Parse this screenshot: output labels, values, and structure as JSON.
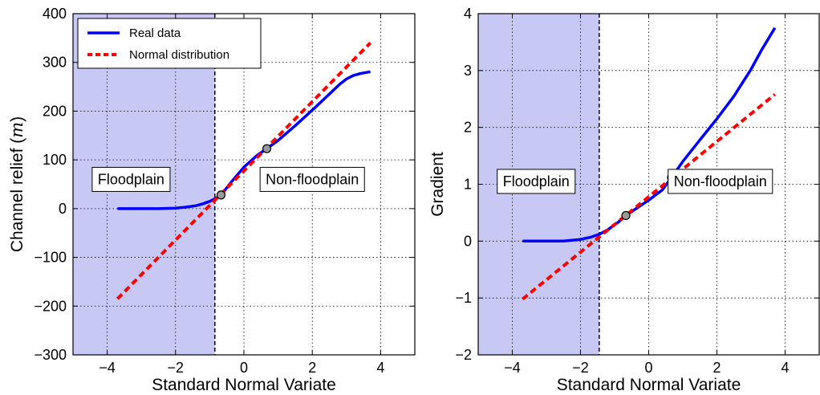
{
  "chart_data": [
    {
      "type": "line",
      "xlabel": "Standard Normal Variate",
      "ylabel": "Channel relief ",
      "ylabel_unit": "m",
      "xlim": [
        -5,
        5
      ],
      "ylim": [
        -300,
        400
      ],
      "xticks": [
        -4,
        -2,
        0,
        2,
        4
      ],
      "yticks": [
        -300,
        -200,
        -100,
        0,
        100,
        200,
        300,
        400
      ],
      "grid": true,
      "legend_position": "top-left",
      "shaded_region": {
        "x_from": -5,
        "x_to": -0.85,
        "color": "#c8c8f5"
      },
      "threshold_x": -0.85,
      "annotations": [
        {
          "text": "Floodplain",
          "x": -3.3,
          "y": 60
        },
        {
          "text": "Non-floodplain",
          "x": 2.0,
          "y": 60
        }
      ],
      "markers": [
        {
          "x": -0.67,
          "y": 28
        },
        {
          "x": 0.67,
          "y": 123
        }
      ],
      "series": [
        {
          "name": "Real data",
          "color": "#0000ff",
          "style": "solid",
          "x": [
            -3.7,
            -3.0,
            -2.5,
            -2.0,
            -1.7,
            -1.4,
            -1.2,
            -1.0,
            -0.85,
            -0.67,
            -0.4,
            0.0,
            0.4,
            0.67,
            1.0,
            1.5,
            2.0,
            2.5,
            2.8,
            3.0,
            3.2,
            3.4,
            3.7
          ],
          "y": [
            0,
            0,
            0,
            1,
            3,
            6,
            10,
            15,
            20,
            28,
            52,
            85,
            110,
            123,
            140,
            170,
            202,
            235,
            255,
            266,
            273,
            277,
            281
          ]
        },
        {
          "name": "Normal distribution",
          "color": "#ff0000",
          "style": "dashed",
          "x": [
            -3.7,
            3.7
          ],
          "y": [
            -185,
            340
          ]
        }
      ]
    },
    {
      "type": "line",
      "xlabel": "Standard Normal Variate",
      "ylabel": "Gradient",
      "xlim": [
        -5,
        5
      ],
      "ylim": [
        -2,
        4
      ],
      "xticks": [
        -4,
        -2,
        0,
        2,
        4
      ],
      "yticks": [
        -2,
        -1,
        0,
        1,
        2,
        3,
        4
      ],
      "grid": true,
      "shaded_region": {
        "x_from": -5,
        "x_to": -1.45,
        "color": "#c8c8f5"
      },
      "threshold_x": -1.45,
      "annotations": [
        {
          "text": "Floodplain",
          "x": -3.3,
          "y": 1.05
        },
        {
          "text": "Non-floodplain",
          "x": 2.1,
          "y": 1.05
        }
      ],
      "markers": [
        {
          "x": -0.67,
          "y": 0.45
        },
        {
          "x": 0.67,
          "y": 1.12
        }
      ],
      "series": [
        {
          "name": "Real data",
          "color": "#0000ff",
          "style": "solid",
          "x": [
            -3.7,
            -3.0,
            -2.5,
            -2.0,
            -1.7,
            -1.45,
            -1.2,
            -0.9,
            -0.67,
            -0.3,
            0.0,
            0.4,
            0.67,
            1.0,
            1.5,
            2.0,
            2.5,
            3.0,
            3.3,
            3.5,
            3.7
          ],
          "y": [
            0,
            0,
            0,
            0.03,
            0.07,
            0.12,
            0.2,
            0.33,
            0.45,
            0.6,
            0.72,
            0.9,
            1.12,
            1.4,
            1.78,
            2.15,
            2.55,
            3.02,
            3.35,
            3.55,
            3.75
          ]
        },
        {
          "name": "Normal distribution",
          "color": "#ff0000",
          "style": "dashed",
          "x": [
            -3.7,
            3.7
          ],
          "y": [
            -1.02,
            2.58
          ]
        }
      ]
    }
  ]
}
